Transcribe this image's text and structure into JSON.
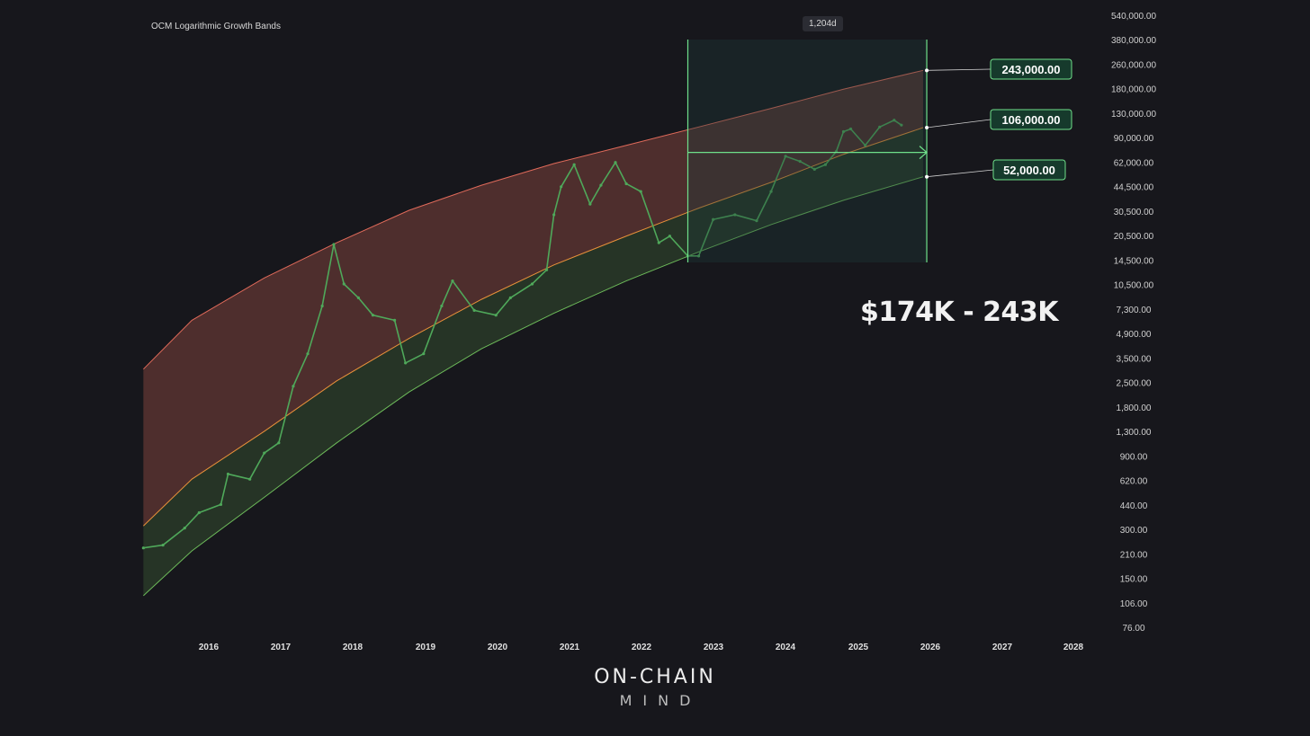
{
  "chart_data": {
    "type": "line",
    "title": "OCM Logarithmic Growth Bands",
    "measure_label": "1,204d",
    "callout": "$174K - 243K",
    "y_scale": "log",
    "y_ticks": [
      "540,000.00",
      "380,000.00",
      "260,000.00",
      "180,000.00",
      "130,000.00",
      "90,000.00",
      "62,000.00",
      "44,500.00",
      "30,500.00",
      "20,500.00",
      "14,500.00",
      "10,500.00",
      "7,300.00",
      "4,900.00",
      "3,500.00",
      "2,500.00",
      "1,800.00",
      "1,300.00",
      "900.00",
      "620.00",
      "440.00",
      "300.00",
      "210.00",
      "150.00",
      "106.00",
      "76.00"
    ],
    "x_ticks": [
      "2016",
      "2017",
      "2018",
      "2019",
      "2020",
      "2021",
      "2022",
      "2023",
      "2024",
      "2025",
      "2026",
      "2027",
      "2028"
    ],
    "xlim": [
      2015.4,
      2028.2
    ],
    "band_colors": {
      "upper": "#e06a5a",
      "mid": "#e8913a",
      "lower": "#6dbb5a",
      "price": "#4fa85a",
      "marker": "#6fe08a"
    },
    "series": [
      {
        "name": "Upper band",
        "x": [
          2015.33,
          2016.0,
          2017.0,
          2018.0,
          2019.0,
          2020.0,
          2021.0,
          2022.0,
          2023.0,
          2024.0,
          2025.0,
          2026.1
        ],
        "values": [
          3200,
          6500,
          12000,
          20000,
          32000,
          46000,
          63000,
          82000,
          107000,
          140000,
          185000,
          243000
        ]
      },
      {
        "name": "Mid band",
        "x": [
          2015.33,
          2016.0,
          2017.0,
          2018.0,
          2019.0,
          2020.0,
          2021.0,
          2022.0,
          2023.0,
          2024.0,
          2025.0,
          2026.1
        ],
        "values": [
          330,
          650,
          1300,
          2700,
          5000,
          8800,
          14500,
          22000,
          33000,
          48000,
          72000,
          106000
        ]
      },
      {
        "name": "Lower band",
        "x": [
          2015.33,
          2016.0,
          2017.0,
          2018.0,
          2019.0,
          2020.0,
          2021.0,
          2022.0,
          2023.0,
          2024.0,
          2025.0,
          2026.1
        ],
        "values": [
          120,
          230,
          500,
          1100,
          2300,
          4300,
          7200,
          11500,
          17500,
          26000,
          37000,
          52000
        ]
      },
      {
        "name": "BTC price",
        "x": [
          2015.33,
          2015.6,
          2015.9,
          2016.1,
          2016.4,
          2016.5,
          2016.8,
          2017.0,
          2017.2,
          2017.4,
          2017.6,
          2017.8,
          2017.96,
          2018.1,
          2018.3,
          2018.5,
          2018.8,
          2018.95,
          2019.2,
          2019.45,
          2019.6,
          2019.9,
          2020.2,
          2020.4,
          2020.7,
          2020.9,
          2021.0,
          2021.1,
          2021.28,
          2021.5,
          2021.65,
          2021.85,
          2022.0,
          2022.2,
          2022.45,
          2022.6,
          2022.85,
          2023.0,
          2023.2,
          2023.5,
          2023.8,
          2024.0,
          2024.2,
          2024.4,
          2024.6,
          2024.75,
          2024.9,
          2025.0,
          2025.1,
          2025.3,
          2025.5,
          2025.7,
          2025.8
        ],
        "values": [
          240,
          250,
          320,
          400,
          450,
          700,
          650,
          950,
          1100,
          2500,
          4000,
          8000,
          19500,
          11000,
          9000,
          7000,
          6500,
          3500,
          4000,
          8000,
          11500,
          7500,
          7000,
          9000,
          11000,
          13500,
          30000,
          45000,
          62000,
          35000,
          46000,
          64000,
          47000,
          42000,
          20000,
          22000,
          16500,
          16500,
          28000,
          30000,
          27500,
          42000,
          70000,
          65000,
          58000,
          62000,
          75000,
          100000,
          104000,
          82000,
          107000,
          118000,
          110000
        ]
      }
    ],
    "labels": [
      "243,000.00",
      "106,000.00",
      "52,000.00"
    ],
    "measure_range": {
      "x0": 2022.85,
      "x1": 2026.15
    }
  },
  "branding": {
    "line1": "ON-CHAIN",
    "line2": "MIND"
  }
}
